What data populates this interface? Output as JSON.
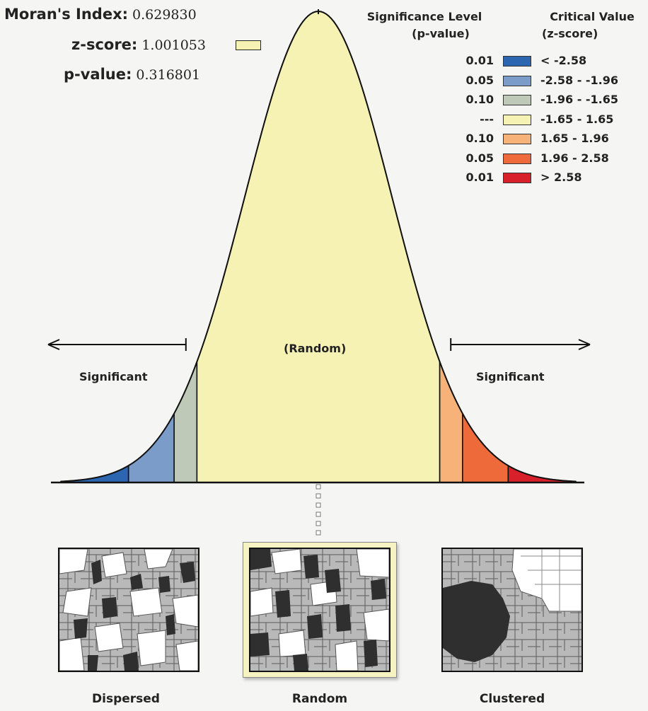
{
  "stats": {
    "morans_label": "Moran's Index:",
    "morans_value": "0.629830",
    "zscore_label": "z-score:",
    "zscore_value": "1.001053",
    "pvalue_label": "p-value:",
    "pvalue_value": "0.316801"
  },
  "legend": {
    "sig_head_line1": "Significance Level",
    "sig_head_line2": "(p-value)",
    "crit_head_line1": "Critical Value",
    "crit_head_line2": "(z-score)",
    "rows": [
      {
        "p": "0.01",
        "z": "< -2.58",
        "color": "#2c65b0"
      },
      {
        "p": "0.05",
        "z": "-2.58 - -1.96",
        "color": "#7b9bc8"
      },
      {
        "p": "0.10",
        "z": "-1.96 - -1.65",
        "color": "#bfc9b8"
      },
      {
        "p": "---",
        "z": "-1.65 - 1.65",
        "color": "#f6f2b4"
      },
      {
        "p": "0.10",
        "z": "1.65 - 1.96",
        "color": "#f7b27a"
      },
      {
        "p": "0.05",
        "z": "1.96 - 2.58",
        "color": "#ee6a3a"
      },
      {
        "p": "0.01",
        "z": "> 2.58",
        "color": "#d8202a"
      }
    ]
  },
  "chart_data": {
    "type": "area",
    "title": "",
    "z_score": 1.001053,
    "critical_values": [
      -2.58,
      -1.96,
      -1.65,
      1.65,
      1.96,
      2.58
    ],
    "xlim": [
      -3.5,
      3.5
    ],
    "annotations": {
      "center": "(Random)",
      "left": "Significant",
      "right": "Significant"
    }
  },
  "maps": [
    {
      "label": "Dispersed",
      "highlighted": false
    },
    {
      "label": "Random",
      "highlighted": true
    },
    {
      "label": "Clustered",
      "highlighted": false
    }
  ]
}
